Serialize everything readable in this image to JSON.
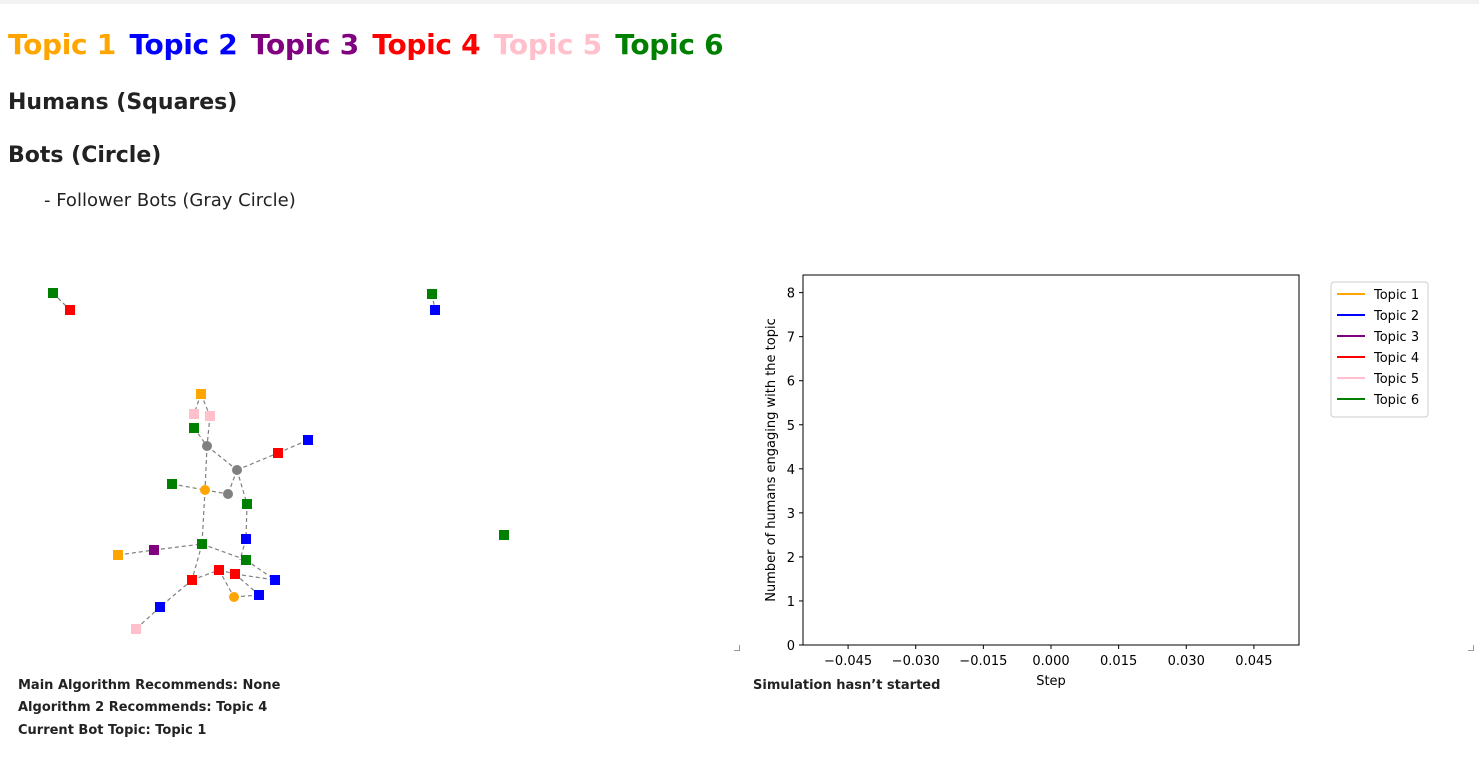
{
  "topics": [
    {
      "label": "Topic 1",
      "color": "#ffa500"
    },
    {
      "label": "Topic 2",
      "color": "#0000ff"
    },
    {
      "label": "Topic 3",
      "color": "#800080"
    },
    {
      "label": "Topic 4",
      "color": "#ff0000"
    },
    {
      "label": "Topic 5",
      "color": "#ffc0cb"
    },
    {
      "label": "Topic 6",
      "color": "#008000"
    }
  ],
  "headings": {
    "humans": "Humans (Squares)",
    "bots": "Bots (Circle)",
    "follower_bots": "- Follower Bots (Gray Circle)"
  },
  "status": {
    "main_algorithm": "Main Algorithm Recommends: None",
    "algorithm2": "Algorithm 2 Recommends: Topic 4",
    "current_bot_topic": "Current Bot Topic: Topic 1",
    "simulation": "Simulation hasn’t started"
  },
  "network": {
    "human_color_key": [
      "green",
      "red",
      "blue",
      "orange",
      "purple",
      "pink"
    ],
    "follower_bot_color": "#808080",
    "edge_color": "#808080"
  },
  "chart_data": {
    "type": "line",
    "xlabel": "Step",
    "ylabel": "Number of humans engaging with the topic",
    "xlim": [
      -0.055,
      0.055
    ],
    "ylim": [
      0,
      8.4
    ],
    "x_ticks": [
      "−0.045",
      "−0.030",
      "−0.015",
      "0.000",
      "0.015",
      "0.030",
      "0.045"
    ],
    "x_tick_values": [
      -0.045,
      -0.03,
      -0.015,
      0.0,
      0.015,
      0.03,
      0.045
    ],
    "y_ticks": [
      "0",
      "1",
      "2",
      "3",
      "4",
      "5",
      "6",
      "7",
      "8"
    ],
    "y_tick_values": [
      0,
      1,
      2,
      3,
      4,
      5,
      6,
      7,
      8
    ],
    "legend_position": "outside-top-right",
    "series": [
      {
        "name": "Topic 1",
        "color": "#ffa500",
        "x": [],
        "y": []
      },
      {
        "name": "Topic 2",
        "color": "#0000ff",
        "x": [],
        "y": []
      },
      {
        "name": "Topic 3",
        "color": "#800080",
        "x": [],
        "y": []
      },
      {
        "name": "Topic 4",
        "color": "#ff0000",
        "x": [],
        "y": []
      },
      {
        "name": "Topic 5",
        "color": "#ffc0cb",
        "x": [],
        "y": []
      },
      {
        "name": "Topic 6",
        "color": "#008000",
        "x": [],
        "y": []
      }
    ]
  }
}
